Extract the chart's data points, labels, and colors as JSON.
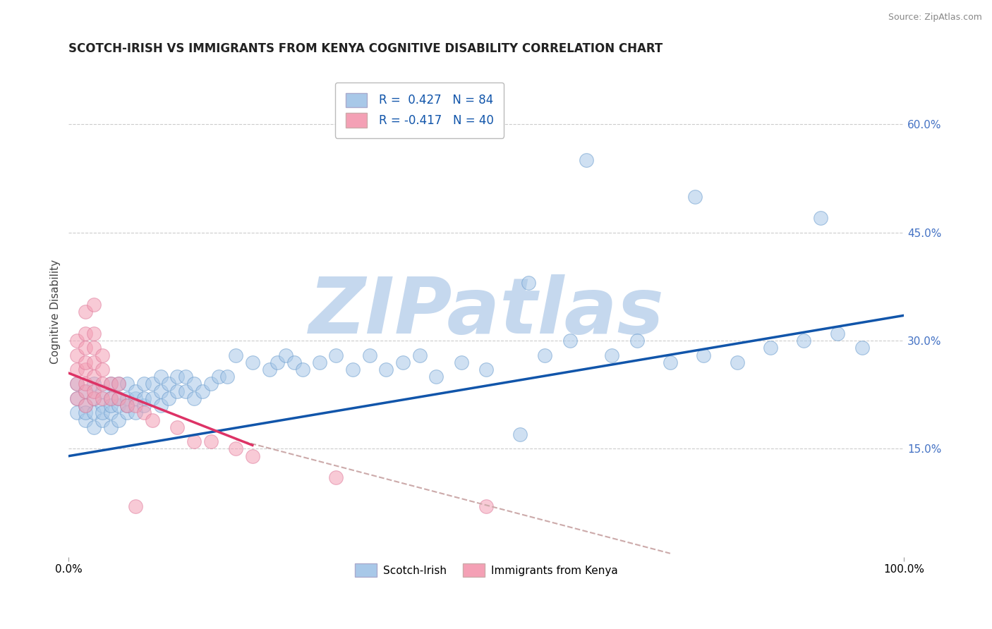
{
  "title": "SCOTCH-IRISH VS IMMIGRANTS FROM KENYA COGNITIVE DISABILITY CORRELATION CHART",
  "source": "Source: ZipAtlas.com",
  "ylabel": "Cognitive Disability",
  "xlim": [
    0,
    1.0
  ],
  "ylim": [
    0.0,
    0.68
  ],
  "xticklabels": [
    "0.0%",
    "100.0%"
  ],
  "ytick_positions": [
    0.15,
    0.3,
    0.45,
    0.6
  ],
  "ytick_labels": [
    "15.0%",
    "30.0%",
    "45.0%",
    "60.0%"
  ],
  "blue_R": 0.427,
  "blue_N": 84,
  "pink_R": -0.417,
  "pink_N": 40,
  "blue_color": "#A8C8E8",
  "pink_color": "#F4A0B5",
  "blue_edge_color": "#6699CC",
  "pink_edge_color": "#DD7799",
  "blue_line_color": "#1155AA",
  "pink_line_color": "#DD3366",
  "dash_color": "#CCAAAA",
  "watermark": "ZIPatlas",
  "watermark_color": "#C5D8EE",
  "background_color": "#FFFFFF",
  "legend_label_blue": "Scotch-Irish",
  "legend_label_pink": "Immigrants from Kenya",
  "blue_scatter_x": [
    0.01,
    0.01,
    0.01,
    0.02,
    0.02,
    0.02,
    0.02,
    0.03,
    0.03,
    0.03,
    0.03,
    0.04,
    0.04,
    0.04,
    0.04,
    0.05,
    0.05,
    0.05,
    0.05,
    0.05,
    0.06,
    0.06,
    0.06,
    0.06,
    0.07,
    0.07,
    0.07,
    0.07,
    0.08,
    0.08,
    0.08,
    0.09,
    0.09,
    0.09,
    0.1,
    0.1,
    0.11,
    0.11,
    0.11,
    0.12,
    0.12,
    0.13,
    0.13,
    0.14,
    0.14,
    0.15,
    0.15,
    0.16,
    0.17,
    0.18,
    0.19,
    0.2,
    0.22,
    0.24,
    0.25,
    0.26,
    0.27,
    0.28,
    0.3,
    0.32,
    0.34,
    0.36,
    0.38,
    0.4,
    0.42,
    0.44,
    0.47,
    0.5,
    0.54,
    0.57,
    0.6,
    0.65,
    0.68,
    0.72,
    0.76,
    0.8,
    0.84,
    0.88,
    0.92,
    0.95,
    0.55,
    0.62,
    0.75,
    0.9
  ],
  "blue_scatter_y": [
    0.2,
    0.22,
    0.24,
    0.19,
    0.21,
    0.23,
    0.2,
    0.18,
    0.2,
    0.22,
    0.24,
    0.19,
    0.21,
    0.23,
    0.2,
    0.18,
    0.2,
    0.22,
    0.24,
    0.21,
    0.19,
    0.21,
    0.22,
    0.24,
    0.2,
    0.22,
    0.24,
    0.21,
    0.2,
    0.22,
    0.23,
    0.21,
    0.22,
    0.24,
    0.22,
    0.24,
    0.21,
    0.23,
    0.25,
    0.22,
    0.24,
    0.23,
    0.25,
    0.23,
    0.25,
    0.22,
    0.24,
    0.23,
    0.24,
    0.25,
    0.25,
    0.28,
    0.27,
    0.26,
    0.27,
    0.28,
    0.27,
    0.26,
    0.27,
    0.28,
    0.26,
    0.28,
    0.26,
    0.27,
    0.28,
    0.25,
    0.27,
    0.26,
    0.17,
    0.28,
    0.3,
    0.28,
    0.3,
    0.27,
    0.28,
    0.27,
    0.29,
    0.3,
    0.31,
    0.29,
    0.38,
    0.55,
    0.5,
    0.47
  ],
  "pink_scatter_x": [
    0.01,
    0.01,
    0.01,
    0.01,
    0.01,
    0.02,
    0.02,
    0.02,
    0.02,
    0.02,
    0.02,
    0.02,
    0.02,
    0.03,
    0.03,
    0.03,
    0.03,
    0.03,
    0.03,
    0.04,
    0.04,
    0.04,
    0.04,
    0.05,
    0.05,
    0.06,
    0.06,
    0.07,
    0.08,
    0.09,
    0.1,
    0.13,
    0.15,
    0.17,
    0.2,
    0.22,
    0.32,
    0.5,
    0.03,
    0.08
  ],
  "pink_scatter_y": [
    0.22,
    0.24,
    0.26,
    0.28,
    0.3,
    0.21,
    0.23,
    0.24,
    0.26,
    0.27,
    0.29,
    0.31,
    0.34,
    0.22,
    0.23,
    0.25,
    0.27,
    0.29,
    0.31,
    0.22,
    0.24,
    0.26,
    0.28,
    0.22,
    0.24,
    0.22,
    0.24,
    0.21,
    0.21,
    0.2,
    0.19,
    0.18,
    0.16,
    0.16,
    0.15,
    0.14,
    0.11,
    0.07,
    0.35,
    0.07
  ],
  "blue_line_x0": 0.0,
  "blue_line_x1": 1.0,
  "blue_line_y0": 0.14,
  "blue_line_y1": 0.335,
  "pink_line_x0": 0.0,
  "pink_line_x1": 0.22,
  "pink_line_y0": 0.255,
  "pink_line_y1": 0.155,
  "dash_line_x0": 0.2,
  "dash_line_x1": 0.72,
  "dash_line_y0": 0.163,
  "dash_line_y1": 0.005
}
